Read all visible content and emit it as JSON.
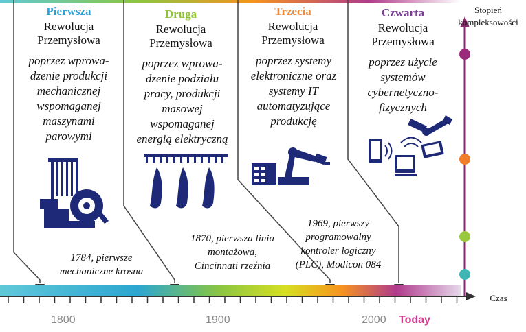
{
  "revolutions": [
    {
      "title": "Pierwsza",
      "line1": "Rewolucja",
      "line2": "Przemysłowa",
      "desc": [
        "poprzez wprowa-",
        "dzenie produkcji",
        "mechanicznej",
        "wspomaganej",
        "maszynami",
        "parowymi"
      ],
      "event": [
        "1784, pierwsze",
        "mechaniczne krosna"
      ],
      "color": "#2aa3d8"
    },
    {
      "title": "Druga",
      "line1": "Rewolucja",
      "line2": "Przemysłowa",
      "desc": [
        "poprzez wprowa-",
        "dzenie podziału",
        "pracy, produkcji",
        "masowej",
        "wspomaganej",
        "energią elektryczną"
      ],
      "event": [
        "1870, pierwsza linia",
        "montażowa,",
        "Cincinnati rzeźnia"
      ],
      "color": "#8fc33a"
    },
    {
      "title": "Trzecia",
      "line1": "Rewolucja",
      "line2": "Przemysłowa",
      "desc": [
        "poprzez systemy",
        "elektroniczne oraz",
        "systemy IT",
        "automatyzujące",
        "produkcję"
      ],
      "event": [
        "1969, pierwszy",
        "programowalny",
        "kontroler logiczny",
        "(PLC), Modicon 084"
      ],
      "color": "#f08a3c"
    },
    {
      "title": "Czwarta",
      "line1": "Rewolucja",
      "line2": "Przemysłowa",
      "desc": [
        "poprzez użycie",
        "systemów",
        "cybernetyczno-",
        "fizycznych"
      ],
      "event": [],
      "color": "#7b3f98"
    }
  ],
  "axis": {
    "y_label": [
      "Stopień",
      "kompleksowości"
    ],
    "x_label": "Czas",
    "years": [
      "1800",
      "1900",
      "2000"
    ],
    "today": "Today"
  },
  "complexity_levels": [
    {
      "name": "level-1",
      "color": "#3fb6b3"
    },
    {
      "name": "level-2",
      "color": "#9ac83c"
    },
    {
      "name": "level-3",
      "color": "#f07e2c"
    },
    {
      "name": "level-4",
      "color": "#9c2a7a"
    }
  ],
  "icons": [
    "loom-icon",
    "assembly-line-icon",
    "robot-arm-icon",
    "cyber-physical-icon"
  ]
}
